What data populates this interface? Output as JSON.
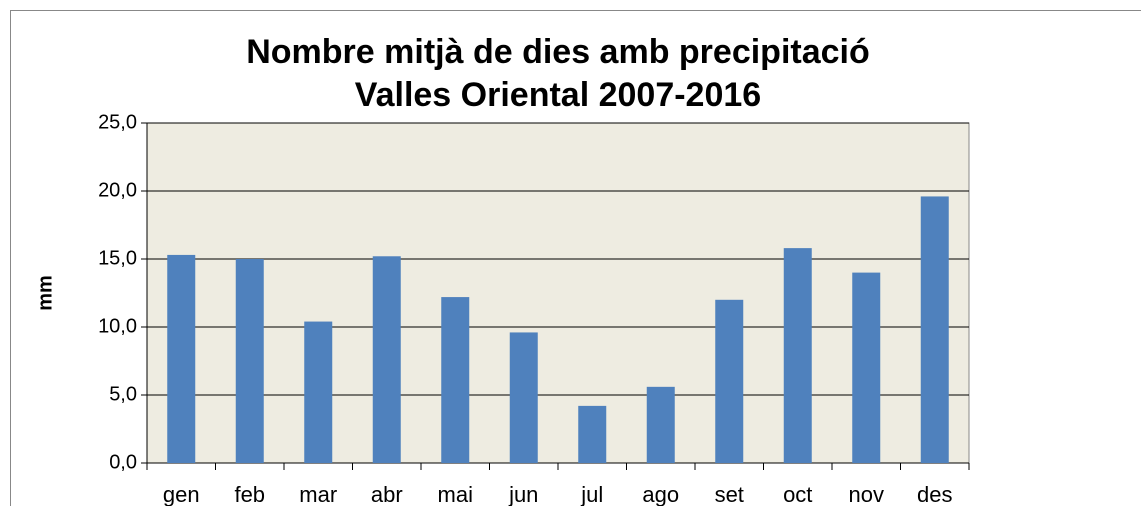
{
  "chart_data": {
    "type": "bar",
    "title": "Nombre mitjà de dies amb precipitació",
    "subtitle": "Valles Oriental 2007-2016",
    "y_label": "mm",
    "categories": [
      "gen",
      "feb",
      "mar",
      "abr",
      "mai",
      "jun",
      "jul",
      "ago",
      "set",
      "oct",
      "nov",
      "des"
    ],
    "values": [
      15.3,
      15.0,
      10.4,
      15.2,
      12.2,
      9.6,
      4.2,
      5.6,
      12.0,
      15.8,
      14.0,
      19.6
    ],
    "color": "#4f81bd",
    "ylim": [
      0,
      25
    ],
    "yticks": [
      {
        "value": 0,
        "label": "0,0"
      },
      {
        "value": 5,
        "label": "5,0"
      },
      {
        "value": 10,
        "label": "10,0"
      },
      {
        "value": 15,
        "label": "15,0"
      },
      {
        "value": 20,
        "label": "20,0"
      },
      {
        "value": 25,
        "label": "25,0"
      }
    ],
    "grid": true
  }
}
